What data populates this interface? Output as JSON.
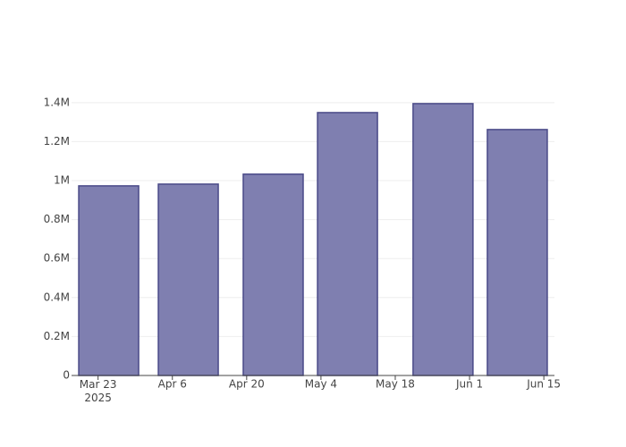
{
  "chart_data": {
    "type": "bar",
    "x": [
      "2025-03-25",
      "2025-04-09",
      "2025-04-25",
      "2025-05-09",
      "2025-05-27",
      "2025-06-10"
    ],
    "values": [
      973000,
      982000,
      1033000,
      1349000,
      1395000,
      1262000
    ],
    "color": "#7f7fb0",
    "edge_color": "#4a4a88",
    "xlim": [
      "2025-03-18",
      "2025-06-17"
    ],
    "xticks": [
      {
        "value": "2025-03-23",
        "label": "Mar 23\n2025"
      },
      {
        "value": "2025-04-06",
        "label": "Apr 6"
      },
      {
        "value": "2025-04-20",
        "label": "Apr 20"
      },
      {
        "value": "2025-05-04",
        "label": "May 4"
      },
      {
        "value": "2025-05-18",
        "label": "May 18"
      },
      {
        "value": "2025-06-01",
        "label": "Jun 1"
      },
      {
        "value": "2025-06-15",
        "label": "Jun 15"
      }
    ],
    "ylim": [
      0,
      1468000
    ],
    "yticks": [
      0,
      {
        "value": 200000,
        "label": "0.2M"
      },
      {
        "value": 400000,
        "label": "0.4M"
      },
      {
        "value": 600000,
        "label": "0.6M"
      },
      {
        "value": 800000,
        "label": "0.8M"
      },
      {
        "value": 1000000,
        "label": "1M"
      },
      {
        "value": 1200000,
        "label": "1.2M"
      },
      {
        "value": 1400000,
        "label": "1.4M"
      }
    ],
    "grid": true
  }
}
